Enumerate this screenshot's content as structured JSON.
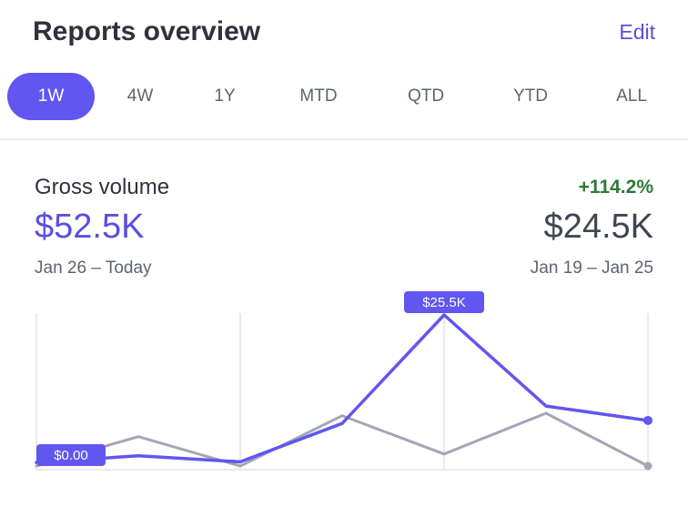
{
  "header": {
    "title": "Reports overview",
    "edit_label": "Edit"
  },
  "tabs": [
    {
      "label": "1W",
      "active": true
    },
    {
      "label": "4W",
      "active": false
    },
    {
      "label": "1Y",
      "active": false
    },
    {
      "label": "MTD",
      "active": false
    },
    {
      "label": "QTD",
      "active": false
    },
    {
      "label": "YTD",
      "active": false
    },
    {
      "label": "ALL",
      "active": false
    }
  ],
  "metric": {
    "label": "Gross volume",
    "change": "+114.2%",
    "current_value": "$52.5K",
    "current_range": "Jan 26 – Today",
    "previous_value": "$24.5K",
    "previous_range": "Jan 19 – Jan 25"
  },
  "colors": {
    "accent": "#6156ef",
    "comparison": "#a3a6b4",
    "positive": "#2b7a3a"
  },
  "chart_data": {
    "type": "line",
    "x": [
      0,
      1,
      2,
      3,
      4,
      5,
      6
    ],
    "ylim": [
      0,
      25.5
    ],
    "series": [
      {
        "values": [
          0.9,
          2.0,
          1.0,
          7.4,
          25.5,
          10.3,
          7.9
        ]
      },
      {
        "values": [
          0.3,
          5.2,
          0.3,
          8.7,
          2.3,
          9.1,
          0.3
        ]
      }
    ],
    "annotations": {
      "min_label": "$0.00",
      "max_label": "$25.5K"
    },
    "grid": true
  }
}
